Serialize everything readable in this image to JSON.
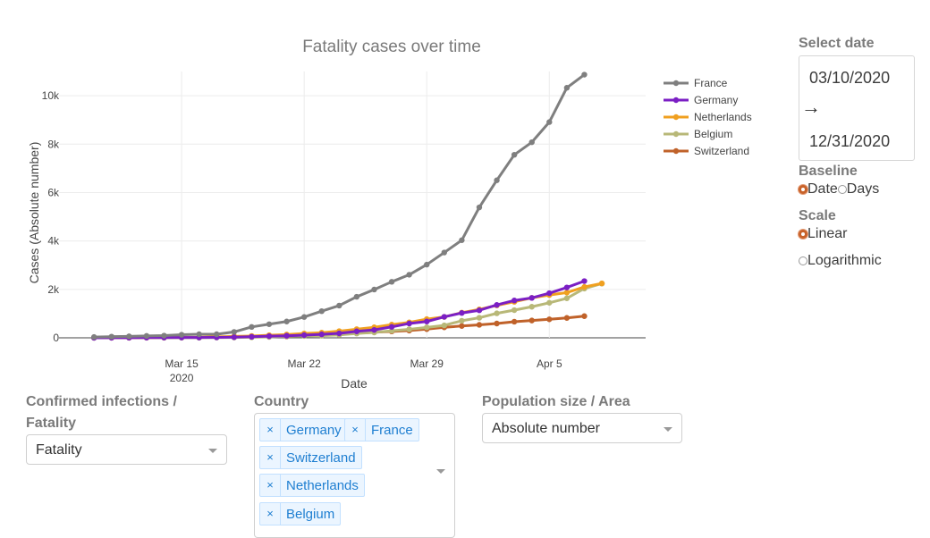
{
  "chart_data": {
    "type": "line",
    "title": "Fatality cases over time",
    "xlabel": "Date",
    "ylabel": "Cases (Absolute number)",
    "ylim": [
      0,
      11000
    ],
    "y_ticks": [
      0,
      2000,
      4000,
      6000,
      8000,
      10000
    ],
    "y_tick_labels": [
      "0",
      "2k",
      "4k",
      "6k",
      "8k",
      "10k"
    ],
    "x_ticks": [
      {
        "day": 15,
        "label": "Mar 15",
        "sublabel": "2020"
      },
      {
        "day": 22,
        "label": "Mar 22",
        "sublabel": ""
      },
      {
        "day": 29,
        "label": "Mar 29",
        "sublabel": ""
      },
      {
        "day": 36,
        "label": "Apr 5",
        "sublabel": ""
      }
    ],
    "x_desc": "day of March 2020 (Apr 1 = 32)",
    "x": [
      10,
      11,
      12,
      13,
      14,
      15,
      16,
      17,
      18,
      19,
      20,
      21,
      22,
      23,
      24,
      25,
      26,
      27,
      28,
      29,
      30,
      31,
      32,
      33,
      34,
      35,
      36,
      37,
      38,
      39
    ],
    "legend_position": "top-right",
    "series": [
      {
        "name": "France",
        "color": "#7f7f7f",
        "values": [
          33,
          48,
          61,
          79,
          91,
          127,
          148,
          148,
          243,
          450,
          562,
          674,
          860,
          1100,
          1331,
          1696,
          1995,
          2314,
          2606,
          3024,
          3523,
          4032,
          5387,
          6507,
          7560,
          8078,
          8911,
          10328,
          10869,
          null
        ]
      },
      {
        "name": "Germany",
        "color": "#7b1fc4",
        "values": [
          2,
          3,
          6,
          9,
          11,
          13,
          13,
          20,
          26,
          44,
          68,
          85,
          112,
          144,
          184,
          268,
          327,
          452,
          592,
          674,
          866,
          1026,
          1136,
          1358,
          1542,
          1650,
          1845,
          2080,
          2343,
          null
        ]
      },
      {
        "name": "Netherlands",
        "color": "#f0a020",
        "values": [
          4,
          5,
          5,
          10,
          12,
          20,
          24,
          43,
          58,
          76,
          106,
          136,
          179,
          213,
          276,
          356,
          434,
          546,
          639,
          771,
          864,
          1039,
          1173,
          1339,
          1487,
          1651,
          1766,
          1867,
          2101,
          2248
        ]
      },
      {
        "name": "Belgium",
        "color": "#b8b878",
        "values": [
          0,
          3,
          3,
          3,
          4,
          4,
          5,
          10,
          14,
          21,
          37,
          67,
          75,
          88,
          122,
          178,
          220,
          289,
          353,
          431,
          513,
          705,
          828,
          1011,
          1143,
          1283,
          1447,
          1632,
          2035,
          2240
        ]
      },
      {
        "name": "Switzerland",
        "color": "#c0622a",
        "values": [
          3,
          4,
          4,
          11,
          13,
          13,
          14,
          27,
          28,
          41,
          54,
          56,
          98,
          120,
          153,
          191,
          231,
          264,
          300,
          359,
          433,
          488,
          536,
          591,
          666,
          715,
          765,
          821,
          895,
          null
        ]
      }
    ]
  },
  "controls": {
    "select_date_label": "Select date",
    "start_date": "03/10/2020",
    "end_date": "12/31/2020",
    "date_arrow": "→",
    "baseline_label": "Baseline",
    "baseline_options": [
      "Date",
      "Days"
    ],
    "baseline_selected": "Date",
    "scale_label": "Scale",
    "scale_options": [
      "Linear",
      "Logarithmic"
    ],
    "scale_selected": "Linear",
    "infections_label_line1": "Confirmed infections /",
    "infections_label_line2": "Fatality",
    "infections_value": "Fatality",
    "country_label": "Country",
    "countries_selected": [
      "Germany",
      "France",
      "Switzerland",
      "Netherlands",
      "Belgium"
    ],
    "tag_remove_glyph": "×",
    "population_label": "Population size / Area",
    "population_value": "Absolute number"
  },
  "colors": {
    "accent": "#c8622a",
    "tag_text": "#1f7fd1",
    "tag_bg": "#ebf5ff",
    "tag_border": "#c2e0ff"
  }
}
